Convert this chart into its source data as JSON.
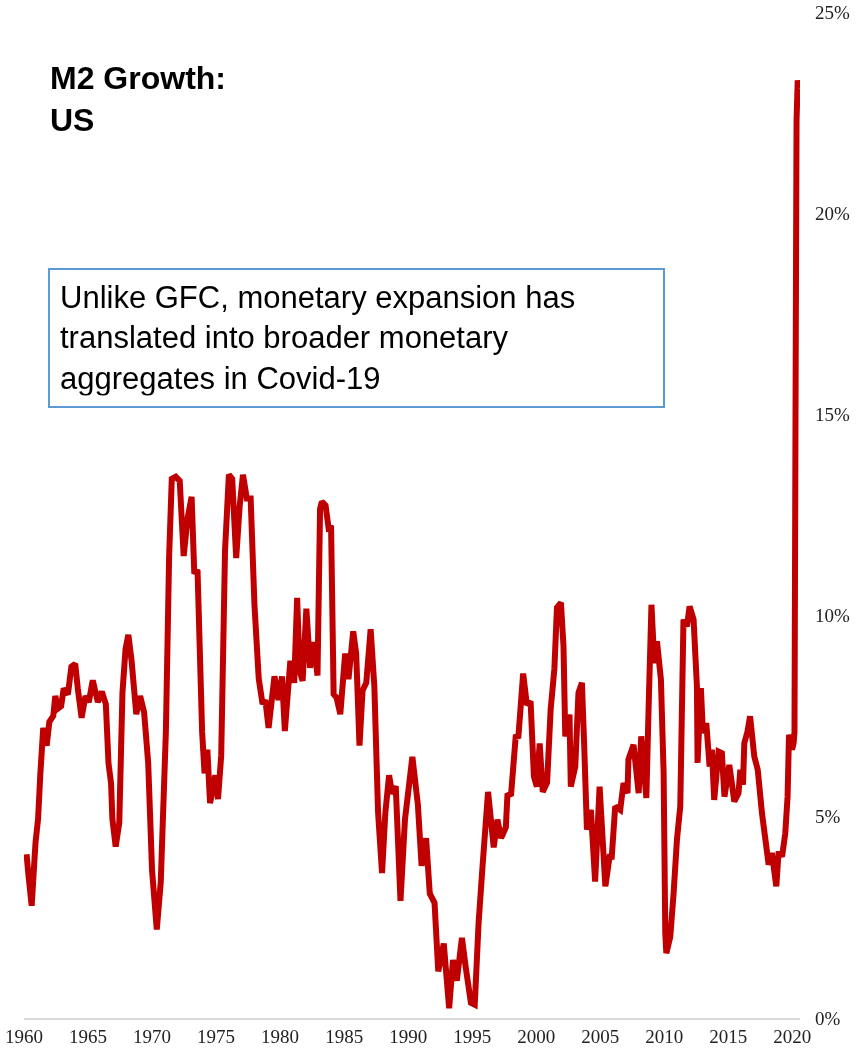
{
  "chart_data": {
    "type": "line",
    "title": "M2 Growth:\nUS",
    "annotations": [
      "Unlike GFC, monetary expansion has\ntranslated into broader monetary\naggregates in Covid-19"
    ],
    "x": [
      1960.2,
      1960.34,
      1960.6,
      1960.9,
      1961.1,
      1961.27,
      1961.5,
      1961.77,
      1961.98,
      1962.29,
      1962.44,
      1962.69,
      1962.9,
      1963.1,
      1963.43,
      1963.7,
      1964.0,
      1964.2,
      1964.5,
      1964.8,
      1965.06,
      1965.37,
      1965.77,
      1966.08,
      1966.39,
      1966.6,
      1966.8,
      1966.9,
      1967.16,
      1967.44,
      1967.69,
      1967.93,
      1968.15,
      1968.4,
      1968.77,
      1969.07,
      1969.38,
      1969.7,
      1970.0,
      1970.37,
      1970.68,
      1971.08,
      1971.33,
      1971.54,
      1971.85,
      1972.16,
      1972.47,
      1972.77,
      1973.09,
      1973.3,
      1973.55,
      1973.91,
      1974.1,
      1974.32,
      1974.53,
      1974.94,
      1975.15,
      1975.4,
      1975.7,
      1976.0,
      1976.26,
      1976.57,
      1976.84,
      1977.1,
      1977.4,
      1977.7,
      1978.0,
      1978.33,
      1978.63,
      1978.85,
      1979.1,
      1979.56,
      1979.87,
      1980.15,
      1980.37,
      1980.8,
      1981.1,
      1981.33,
      1981.53,
      1981.76,
      1982.05,
      1982.34,
      1982.63,
      1982.92,
      1983.12,
      1983.26,
      1983.55,
      1983.78,
      1983.98,
      1984.18,
      1984.41,
      1984.7,
      1985.08,
      1985.34,
      1985.71,
      1985.94,
      1986.2,
      1986.44,
      1986.73,
      1987.07,
      1987.36,
      1987.65,
      1987.96,
      1988.22,
      1988.51,
      1988.75,
      1989.03,
      1989.4,
      1989.75,
      1990.33,
      1990.76,
      1991.05,
      1991.4,
      1991.69,
      1992.06,
      1992.35,
      1992.78,
      1993.2,
      1993.5,
      1993.8,
      1994.2,
      1994.5,
      1994.9,
      1995.2,
      1995.5,
      1995.8,
      1996.24,
      1996.68,
      1996.97,
      1997.26,
      1997.63,
      1997.75,
      1998.04,
      1998.41,
      1998.6,
      1998.98,
      1999.27,
      1999.56,
      1999.82,
      2000.05,
      2000.27,
      2000.51,
      2000.85,
      2001.13,
      2001.42,
      2001.62,
      2001.93,
      2002.13,
      2002.27,
      2002.6,
      2002.7,
      2003.05,
      2003.3,
      2003.57,
      2003.75,
      2003.96,
      2004.27,
      2004.6,
      2004.95,
      2005.4,
      2005.73,
      2005.9,
      2006.17,
      2006.56,
      2006.82,
      2007.13,
      2007.2,
      2007.6,
      2008.0,
      2008.2,
      2008.6,
      2008.78,
      2009.0,
      2009.22,
      2009.43,
      2009.74,
      2009.95,
      2010.08,
      2010.16,
      2010.47,
      2010.73,
      2010.99,
      2011.25,
      2011.5,
      2011.77,
      2011.98,
      2012.29,
      2012.55,
      2012.6,
      2012.86,
      2013.02,
      2013.28,
      2013.54,
      2013.72,
      2013.9,
      2014.24,
      2014.5,
      2014.7,
      2015.08,
      2015.47,
      2015.8,
      2015.94,
      2016.15,
      2016.25,
      2016.5,
      2016.7,
      2017.03,
      2017.3,
      2017.63,
      2017.9,
      2018.15,
      2018.4,
      2018.75,
      2018.93,
      2019.2,
      2019.45,
      2019.63,
      2019.74,
      2019.98,
      2020.1,
      2020.17,
      2020.25,
      2020.33,
      2020.42,
      2020.5
    ],
    "series": [
      {
        "color": "#c00000",
        "values": [
          4.07,
          3.58,
          2.79,
          4.36,
          4.95,
          6.03,
          7.21,
          6.77,
          7.36,
          7.51,
          8.0,
          7.7,
          7.75,
          8.19,
          8.04,
          8.73,
          8.8,
          8.19,
          7.46,
          8.0,
          7.85,
          8.39,
          7.85,
          8.11,
          7.8,
          6.33,
          5.83,
          4.95,
          4.26,
          4.85,
          8.09,
          9.17,
          9.52,
          8.88,
          7.55,
          8.0,
          7.6,
          6.33,
          3.67,
          2.2,
          3.38,
          7.11,
          11.43,
          13.4,
          13.45,
          13.35,
          11.48,
          12.41,
          12.95,
          11.04,
          11.14,
          7.11,
          6.08,
          6.67,
          5.34,
          6.03,
          5.44,
          6.52,
          11.63,
          13.5,
          13.4,
          11.43,
          12.71,
          13.5,
          12.91,
          12.91,
          10.25,
          8.44,
          7.8,
          7.9,
          7.21,
          8.49,
          7.9,
          8.49,
          7.13,
          8.88,
          8.33,
          10.44,
          8.61,
          8.38,
          10.17,
          8.7,
          9.34,
          8.51,
          12.65,
          12.83,
          12.74,
          12.19,
          12.23,
          8.05,
          7.96,
          7.55,
          9.06,
          8.42,
          9.61,
          9.06,
          6.77,
          8.14,
          8.33,
          9.66,
          8.24,
          5.11,
          3.6,
          5.11,
          6.03,
          5.57,
          5.76,
          2.91,
          4.93,
          6.49,
          5.3,
          3.78,
          4.47,
          3.09,
          2.86,
          1.16,
          1.85,
          0.24,
          1.44,
          0.93,
          1.99,
          1.25,
          0.38,
          0.33,
          2.36,
          3.73,
          5.62,
          4.24,
          4.93,
          4.47,
          4.74,
          5.53,
          5.57,
          7.04,
          6.95,
          8.56,
          7.78,
          7.87,
          6.0,
          5.75,
          6.82,
          5.62,
          5.85,
          7.68,
          8.68,
          10.2,
          10.32,
          9.24,
          7.0,
          7.54,
          5.75,
          6.25,
          8.08,
          8.33,
          6.75,
          4.68,
          5.17,
          3.39,
          5.75,
          3.27,
          4.01,
          4.01,
          5.26,
          5.17,
          5.84,
          5.59,
          6.42,
          6.79,
          5.59,
          7.0,
          5.47,
          7.74,
          10.27,
          8.82,
          9.36,
          8.41,
          6.09,
          2.11,
          1.61,
          2.02,
          3.1,
          4.43,
          5.26,
          9.9,
          9.73,
          10.23,
          9.9,
          8.24,
          6.34,
          8.2,
          7.08,
          7.33,
          6.25,
          6.67,
          5.42,
          6.62,
          6.58,
          5.5,
          6.29,
          5.38,
          5.59,
          6.17,
          5.8,
          6.83,
          7.12,
          7.5,
          6.5,
          6.17,
          5.09,
          4.43,
          3.81,
          4.1,
          3.27,
          4.14,
          4.01,
          4.59,
          5.5,
          7.04,
          6.67,
          6.83,
          7.1,
          15.0,
          22.3,
          23.3,
          23.1
        ]
      }
    ],
    "xlim": [
      1960,
      2020.6
    ],
    "xticks": [
      1960,
      1965,
      1970,
      1975,
      1980,
      1985,
      1990,
      1995,
      2000,
      2005,
      2010,
      2015,
      2020
    ],
    "ylim": [
      0,
      25
    ],
    "yticks": [
      {
        "value": 0,
        "label": "0%"
      },
      {
        "value": 5,
        "label": "5%"
      },
      {
        "value": 10,
        "label": "10%"
      },
      {
        "value": 15,
        "label": "15%"
      },
      {
        "value": 20,
        "label": "20%"
      },
      {
        "value": 25,
        "label": "25%"
      }
    ],
    "grid": false
  }
}
